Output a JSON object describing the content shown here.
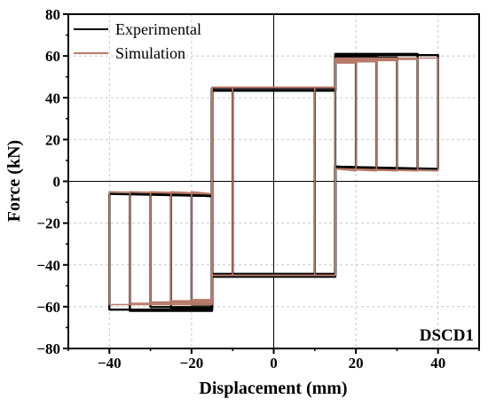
{
  "chart_data": {
    "type": "line",
    "xlabel": "Displacement (mm)",
    "ylabel": "Force (kN)",
    "xlim": [
      -50,
      50
    ],
    "ylim": [
      -80,
      80
    ],
    "xticks": [
      -40,
      -20,
      0,
      20,
      40
    ],
    "yticks": [
      -80,
      -60,
      -40,
      -20,
      0,
      20,
      40,
      60,
      80
    ],
    "grid": true,
    "legend_position": "top-left",
    "annotation": "DSCD1",
    "series": [
      {
        "name": "Experimental",
        "color": "#000000",
        "amplitudes": [
          10,
          15,
          20,
          25,
          30,
          35,
          40
        ],
        "upper_plateau_inner": 44,
        "upper_plateau_outer": 58,
        "lower_plateau_inner": -45,
        "lower_plateau_outer": -59,
        "outer_return_upper": 6,
        "outer_return_lower": -6,
        "transition_displacement": 15
      },
      {
        "name": "Simulation",
        "color": "#b87a6a",
        "amplitudes": [
          10,
          15,
          20,
          25,
          30,
          35,
          40
        ],
        "upper_plateau_inner": 45,
        "upper_plateau_outer": 56,
        "lower_plateau_inner": -45,
        "lower_plateau_outer": -56,
        "outer_return_upper": 5,
        "outer_return_lower": -5,
        "transition_displacement": 15
      }
    ]
  }
}
